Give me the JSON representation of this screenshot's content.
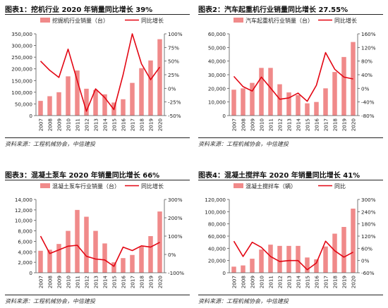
{
  "source_note": "资料来源：工程机械协会，中信建投",
  "colors": {
    "bar": "#f08a8a",
    "line": "#e30613",
    "axis": "#555555",
    "text": "#222222"
  },
  "chart_data": [
    {
      "type": "bar",
      "title": "图表1：挖机行业 2020 年销量同比增长 39%",
      "legend": {
        "bar": "挖掘机行业销量（台）",
        "line": "同比增长",
        "placement": "top"
      },
      "categories": [
        "2007",
        "2008",
        "2009",
        "2010",
        "2011",
        "2012",
        "2013",
        "2014",
        "2015",
        "2016",
        "2017",
        "2018",
        "2019",
        "2020"
      ],
      "values": [
        63000,
        83000,
        100000,
        168000,
        193000,
        115000,
        110000,
        91000,
        56000,
        70000,
        140000,
        203000,
        236000,
        327000
      ],
      "line_values": [
        50,
        33,
        20,
        72,
        14,
        -42,
        -1,
        -17,
        -39,
        25,
        100,
        45,
        16,
        39
      ],
      "ylim": [
        0,
        350000
      ],
      "yticks": [
        0,
        50000,
        100000,
        150000,
        200000,
        250000,
        300000,
        350000
      ],
      "ytick_labels": [
        "0",
        "50,000",
        "100,000",
        "150,000",
        "200,000",
        "250,000",
        "300,000",
        "350,000"
      ],
      "y2lim": [
        -50,
        100
      ],
      "y2ticks": [
        -50,
        -25,
        0,
        25,
        50,
        75,
        100
      ],
      "y2tick_labels": [
        "-50%",
        "-25%",
        "0%",
        "25%",
        "50%",
        "75%",
        "100%"
      ]
    },
    {
      "type": "bar",
      "title": "图表2：汽车起重机行业销量同比增长 27.55%",
      "legend": {
        "bar": "汽车起重机行业销量（台）",
        "line": "同比增长",
        "placement": "top"
      },
      "categories": [
        "2007",
        "2008",
        "2009",
        "2010",
        "2011",
        "2012",
        "2013",
        "2014",
        "2015",
        "2016",
        "2017",
        "2018",
        "2019",
        "2020"
      ],
      "values": [
        19000,
        20000,
        24000,
        35000,
        35000,
        23000,
        17000,
        15000,
        9000,
        10000,
        20000,
        32000,
        43000,
        54000
      ],
      "line_values": [
        35,
        5,
        -8,
        33,
        1,
        -32,
        -28,
        -14,
        -38,
        9,
        105,
        56,
        33,
        27.55
      ],
      "ylim": [
        0,
        60000
      ],
      "yticks": [
        0,
        10000,
        20000,
        30000,
        40000,
        50000,
        60000
      ],
      "ytick_labels": [
        "0",
        "10,000",
        "20,000",
        "30,000",
        "40,000",
        "50,000",
        "60,000"
      ],
      "y2lim": [
        -80,
        160
      ],
      "y2ticks": [
        -80,
        -40,
        0,
        40,
        80,
        120,
        160
      ],
      "y2tick_labels": [
        "-80%",
        "-40%",
        "0%",
        "40%",
        "80%",
        "120%",
        "160%"
      ]
    },
    {
      "type": "bar",
      "title": "图表3：混凝土泵车 2020 年销量同比增长 66%",
      "legend": {
        "bar": "混凝土泵车行业销量（台）",
        "line": "同比增长",
        "placement": "top"
      },
      "categories": [
        "2007",
        "2008",
        "2009",
        "2010",
        "2011",
        "2012",
        "2013",
        "2014",
        "2015",
        "2016",
        "2017",
        "2018",
        "2019",
        "2020"
      ],
      "values": [
        4200,
        4400,
        5500,
        8000,
        12000,
        10700,
        8000,
        5600,
        2000,
        2800,
        3400,
        5000,
        7000,
        11700
      ],
      "line_values": [
        100,
        5,
        25,
        45,
        50,
        -10,
        -25,
        -30,
        -65,
        40,
        21,
        47,
        40,
        66
      ],
      "ylim": [
        0,
        14000
      ],
      "yticks": [
        0,
        2000,
        4000,
        6000,
        8000,
        10000,
        12000,
        14000
      ],
      "ytick_labels": [
        "0",
        "2,000",
        "4,000",
        "6,000",
        "8,000",
        "10,000",
        "12,000",
        "14,000"
      ],
      "y2lim": [
        -100,
        300
      ],
      "y2ticks": [
        -100,
        0,
        100,
        200,
        300
      ],
      "y2tick_labels": [
        "-100%",
        "0%",
        "100%",
        "200%",
        "300%"
      ]
    },
    {
      "type": "bar",
      "title": "图表4：混凝土搅拌车 2020 年销量同比增长 41%",
      "legend": {
        "bar": "混凝土搅拌车（辆）",
        "line": "同比",
        "placement": "top"
      },
      "categories": [
        "2007",
        "2008",
        "2009",
        "2010",
        "2011",
        "2012",
        "2013",
        "2014",
        "2015",
        "2016",
        "2017",
        "2018",
        "2019",
        "2020"
      ],
      "values": [
        10000,
        12000,
        23000,
        38000,
        46000,
        44000,
        44000,
        44000,
        25000,
        22000,
        43000,
        64000,
        75000,
        105000
      ],
      "line_values": [
        95,
        20,
        90,
        65,
        20,
        -5,
        0,
        0,
        -45,
        -12,
        95,
        48,
        17,
        41
      ],
      "ylim": [
        0,
        120000
      ],
      "yticks": [
        0,
        20000,
        40000,
        60000,
        80000,
        100000,
        120000
      ],
      "ytick_labels": [
        "0",
        "20,000",
        "40,000",
        "60,000",
        "80,000",
        "100,000",
        "120,000"
      ],
      "y2lim": [
        -60,
        300
      ],
      "y2ticks": [
        -60,
        0,
        60,
        120,
        180,
        240,
        300
      ],
      "y2tick_labels": [
        "-60%",
        "0%",
        "60%",
        "120%",
        "180%",
        "240%",
        "300%"
      ]
    }
  ]
}
